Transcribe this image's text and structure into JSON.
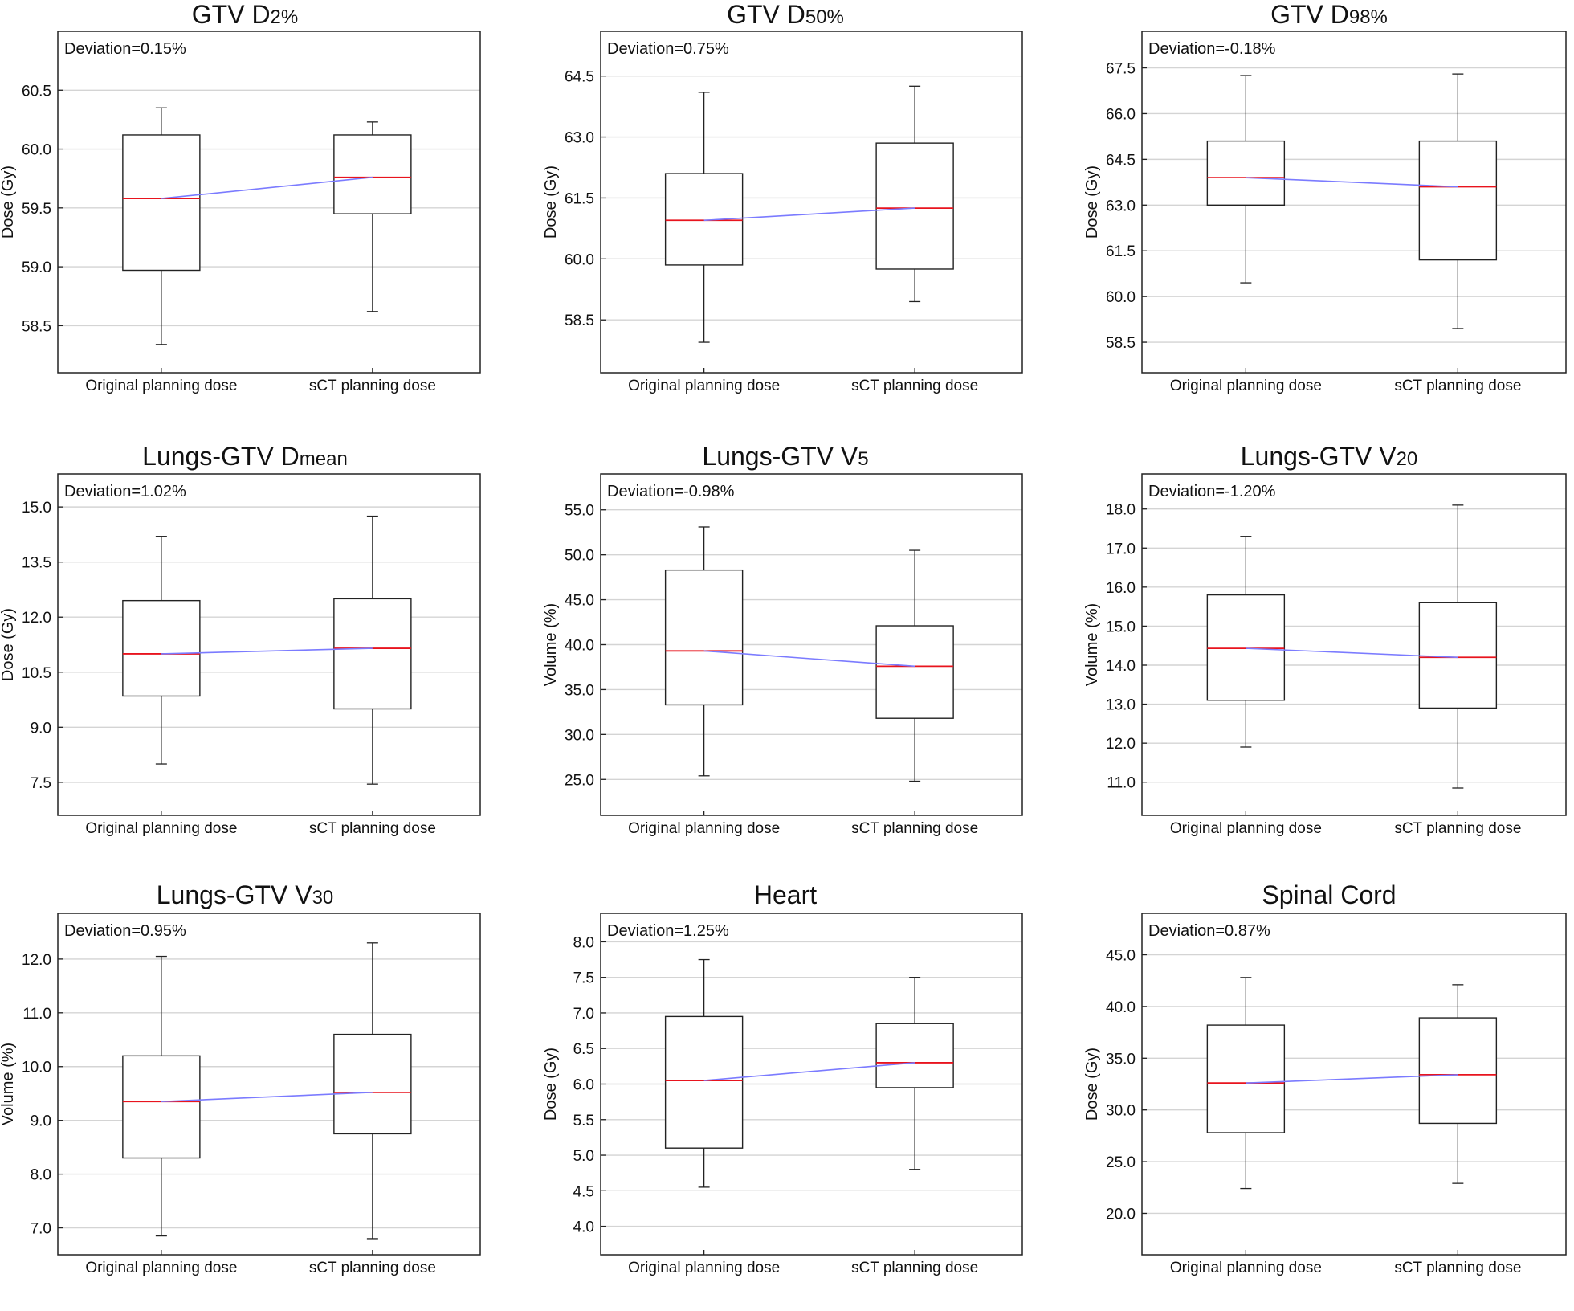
{
  "figure": {
    "background": "#ffffff"
  },
  "style": {
    "median_color": "#e8141e",
    "trend_color": "#7b7bff",
    "box_color": "#222222",
    "grid_color": "#d4d4d4"
  },
  "panels": [
    {
      "title": {
        "main": "GTV D",
        "sub": "2%"
      },
      "ylabel": "Dose (Gy)",
      "annotation": "Deviation=0.15%",
      "ylim": [
        58.1,
        61.0
      ],
      "yticks": [
        58.5,
        59.0,
        59.5,
        60.0,
        60.5
      ],
      "tick_decimals": 1,
      "categories": [
        "Original planning dose",
        "sCT planning dose"
      ],
      "boxes": [
        {
          "min": 58.34,
          "q1": 58.97,
          "median": 59.58,
          "q3": 60.12,
          "max": 60.35
        },
        {
          "min": 58.62,
          "q1": 59.45,
          "median": 59.76,
          "q3": 60.12,
          "max": 60.23
        }
      ]
    },
    {
      "title": {
        "main": "GTV D",
        "sub": "50%"
      },
      "ylabel": "Dose (Gy)",
      "annotation": "Deviation=0.75%",
      "ylim": [
        57.2,
        65.6
      ],
      "yticks": [
        58.5,
        60.0,
        61.5,
        63.0,
        64.5
      ],
      "tick_decimals": 1,
      "categories": [
        "Original planning dose",
        "sCT planning dose"
      ],
      "boxes": [
        {
          "min": 57.95,
          "q1": 59.85,
          "median": 60.95,
          "q3": 62.1,
          "max": 64.1
        },
        {
          "min": 58.95,
          "q1": 59.75,
          "median": 61.25,
          "q3": 62.85,
          "max": 64.25
        }
      ]
    },
    {
      "title": {
        "main": "GTV D",
        "sub": "98%"
      },
      "ylabel": "Dose (Gy)",
      "annotation": "Deviation=-0.18%",
      "ylim": [
        57.5,
        68.7
      ],
      "yticks": [
        58.5,
        60.0,
        61.5,
        63.0,
        64.5,
        66.0,
        67.5
      ],
      "tick_decimals": 1,
      "categories": [
        "Original planning dose",
        "sCT planning dose"
      ],
      "boxes": [
        {
          "min": 60.45,
          "q1": 63.0,
          "median": 63.9,
          "q3": 65.1,
          "max": 67.25
        },
        {
          "min": 58.95,
          "q1": 61.2,
          "median": 63.6,
          "q3": 65.1,
          "max": 67.3
        }
      ]
    },
    {
      "title": {
        "main": "Lungs-GTV D",
        "sub": "mean"
      },
      "ylabel": "Dose (Gy)",
      "annotation": "Deviation=1.02%",
      "ylim": [
        6.6,
        15.9
      ],
      "yticks": [
        7.5,
        9.0,
        10.5,
        12.0,
        13.5,
        15.0
      ],
      "tick_decimals": 1,
      "categories": [
        "Original planning dose",
        "sCT planning dose"
      ],
      "boxes": [
        {
          "min": 8.0,
          "q1": 9.85,
          "median": 11.0,
          "q3": 12.45,
          "max": 14.2
        },
        {
          "min": 7.45,
          "q1": 9.5,
          "median": 11.15,
          "q3": 12.5,
          "max": 14.75
        }
      ]
    },
    {
      "title": {
        "main": "Lungs-GTV V",
        "sub": "5"
      },
      "ylabel": "Volume (%)",
      "annotation": "Deviation=-0.98%",
      "ylim": [
        21.0,
        59.0
      ],
      "yticks": [
        25.0,
        30.0,
        35.0,
        40.0,
        45.0,
        50.0,
        55.0
      ],
      "tick_decimals": 1,
      "categories": [
        "Original planning dose",
        "sCT planning dose"
      ],
      "boxes": [
        {
          "min": 25.4,
          "q1": 33.3,
          "median": 39.3,
          "q3": 48.3,
          "max": 53.1
        },
        {
          "min": 24.8,
          "q1": 31.8,
          "median": 37.6,
          "q3": 42.1,
          "max": 50.5
        }
      ]
    },
    {
      "title": {
        "main": "Lungs-GTV V",
        "sub": "20"
      },
      "ylabel": "Volume (%)",
      "annotation": "Deviation=-1.20%",
      "ylim": [
        10.15,
        18.9
      ],
      "yticks": [
        11.0,
        12.0,
        13.0,
        14.0,
        15.0,
        16.0,
        17.0,
        18.0
      ],
      "tick_decimals": 1,
      "categories": [
        "Original planning dose",
        "sCT planning dose"
      ],
      "boxes": [
        {
          "min": 11.9,
          "q1": 13.1,
          "median": 14.43,
          "q3": 15.8,
          "max": 17.3
        },
        {
          "min": 10.85,
          "q1": 12.9,
          "median": 14.2,
          "q3": 15.6,
          "max": 18.1
        }
      ]
    },
    {
      "title": {
        "main": "Lungs-GTV V",
        "sub": "30"
      },
      "ylabel": "Volume (%)",
      "annotation": "Deviation=0.95%",
      "ylim": [
        6.5,
        12.85
      ],
      "yticks": [
        7.0,
        8.0,
        9.0,
        10.0,
        11.0,
        12.0
      ],
      "tick_decimals": 1,
      "categories": [
        "Original planning dose",
        "sCT planning dose"
      ],
      "boxes": [
        {
          "min": 6.85,
          "q1": 8.3,
          "median": 9.35,
          "q3": 10.2,
          "max": 12.05
        },
        {
          "min": 6.8,
          "q1": 8.75,
          "median": 9.52,
          "q3": 10.6,
          "max": 12.3
        }
      ]
    },
    {
      "title": {
        "main": "Heart",
        "sub": ""
      },
      "ylabel": "Dose (Gy)",
      "annotation": "Deviation=1.25%",
      "ylim": [
        3.6,
        8.4
      ],
      "yticks": [
        4.0,
        4.5,
        5.0,
        5.5,
        6.0,
        6.5,
        7.0,
        7.5,
        8.0
      ],
      "tick_decimals": 1,
      "categories": [
        "Original planning dose",
        "sCT planning dose"
      ],
      "boxes": [
        {
          "min": 4.55,
          "q1": 5.1,
          "median": 6.05,
          "q3": 6.95,
          "max": 7.75
        },
        {
          "min": 4.8,
          "q1": 5.95,
          "median": 6.3,
          "q3": 6.85,
          "max": 7.5
        }
      ]
    },
    {
      "title": {
        "main": "Spinal Cord",
        "sub": ""
      },
      "ylabel": "Dose (Gy)",
      "annotation": "Deviation=0.87%",
      "ylim": [
        16.0,
        49.0
      ],
      "yticks": [
        20.0,
        25.0,
        30.0,
        35.0,
        40.0,
        45.0
      ],
      "tick_decimals": 1,
      "categories": [
        "Original planning dose",
        "sCT planning dose"
      ],
      "boxes": [
        {
          "min": 22.4,
          "q1": 27.8,
          "median": 32.6,
          "q3": 38.2,
          "max": 42.8
        },
        {
          "min": 22.9,
          "q1": 28.7,
          "median": 33.4,
          "q3": 38.9,
          "max": 42.1
        }
      ]
    }
  ]
}
